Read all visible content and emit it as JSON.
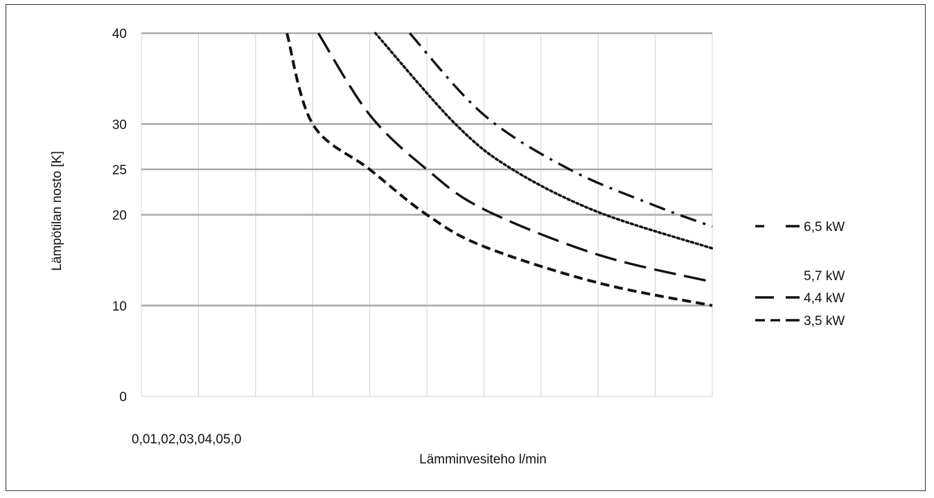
{
  "chart_data": {
    "type": "line",
    "title": "",
    "xlabel": "Lämminvesiteho l/min",
    "ylabel": "Lämpötilan nosto [K]",
    "x_tick_text": "0,01,02,03,04,05,0",
    "xlim": [
      0,
      10
    ],
    "ylim": [
      0,
      40
    ],
    "y_ticks": [
      0,
      10,
      20,
      25,
      30,
      40
    ],
    "grid": true,
    "legend_position": "right",
    "series": [
      {
        "name": "6,5 kW",
        "dash": "dashdot",
        "points": [
          [
            4.7,
            40
          ],
          [
            6.0,
            31
          ],
          [
            7.5,
            25
          ],
          [
            9.0,
            21
          ],
          [
            10.0,
            18.7
          ]
        ]
      },
      {
        "name": "5,7 kW",
        "dash": "dotted",
        "points": [
          [
            4.1,
            40
          ],
          [
            5.5,
            30
          ],
          [
            6.5,
            25
          ],
          [
            8.0,
            20.3
          ],
          [
            10.0,
            16.3
          ]
        ]
      },
      {
        "name": "4,4 kW",
        "dash": "longdash",
        "points": [
          [
            3.1,
            40
          ],
          [
            4.0,
            31
          ],
          [
            5.0,
            25
          ],
          [
            6.0,
            20.6
          ],
          [
            8.0,
            15.6
          ],
          [
            10.0,
            12.6
          ]
        ]
      },
      {
        "name": "3,5 kW",
        "dash": "dashed",
        "points": [
          [
            2.55,
            40
          ],
          [
            3.0,
            30
          ],
          [
            4.0,
            25
          ],
          [
            5.0,
            20
          ],
          [
            6.0,
            16.5
          ],
          [
            8.0,
            12.5
          ],
          [
            10.0,
            10
          ]
        ]
      }
    ]
  }
}
